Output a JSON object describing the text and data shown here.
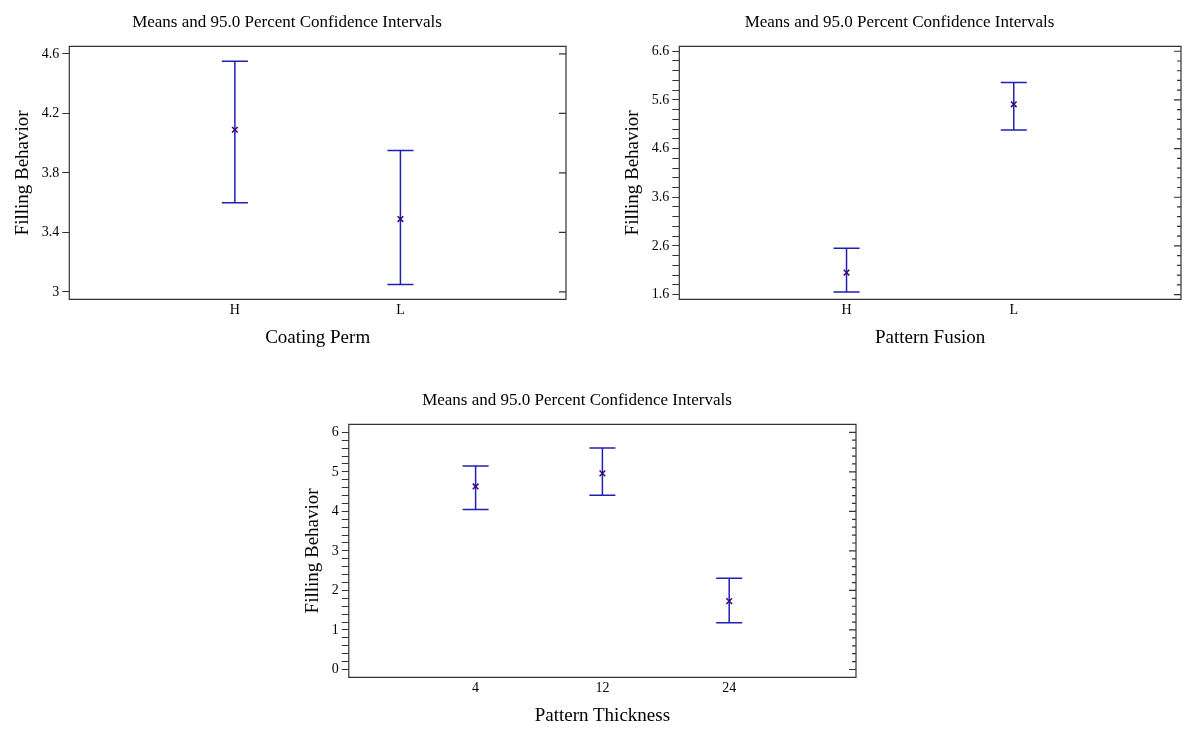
{
  "chart_data": [
    {
      "type": "scatter",
      "title": "Means and 95.0 Percent Confidence Intervals",
      "xlabel": "Coating Perm",
      "ylabel": "Filling Behavior",
      "categories": [
        "H",
        "L"
      ],
      "series": [
        {
          "color": "#400080",
          "values": [
            4.09,
            3.49
          ],
          "errors": [
            [
              3.6,
              4.55
            ],
            [
              3.05,
              3.95
            ]
          ]
        }
      ],
      "ylim": [
        2.95,
        4.65
      ],
      "yticks": [
        3,
        3.4,
        3.8,
        4.2,
        4.6
      ],
      "grid": false,
      "legend": false,
      "marker": "cross"
    },
    {
      "type": "scatter",
      "title": "Means and 95.0 Percent Confidence Intervals",
      "xlabel": "Pattern Fusion",
      "ylabel": "Filling Behavior",
      "categories": [
        "H",
        "L"
      ],
      "series": [
        {
          "color": "#400080",
          "values": [
            2.05,
            5.51
          ],
          "errors": [
            [
              1.65,
              2.55
            ],
            [
              4.98,
              5.96
            ]
          ]
        }
      ],
      "ylim": [
        1.5,
        6.7
      ],
      "yticks": [
        1.6,
        {
          "value": 1.8,
          "label": null
        },
        {
          "value": 2.0,
          "label": null
        },
        {
          "value": 2.2,
          "label": null
        },
        {
          "value": 2.4,
          "label": null
        },
        2.6,
        {
          "value": 2.8,
          "label": null
        },
        {
          "value": 3.0,
          "label": null
        },
        {
          "value": 3.2,
          "label": null
        },
        {
          "value": 3.4,
          "label": null
        },
        3.6,
        {
          "value": 3.8,
          "label": null
        },
        {
          "value": 4.0,
          "label": null
        },
        {
          "value": 4.2,
          "label": null
        },
        {
          "value": 4.4,
          "label": null
        },
        4.6,
        {
          "value": 4.8,
          "label": null
        },
        {
          "value": 5.0,
          "label": null
        },
        {
          "value": 5.2,
          "label": null
        },
        {
          "value": 5.4,
          "label": null
        },
        5.6,
        {
          "value": 5.8,
          "label": null
        },
        {
          "value": 6.0,
          "label": null
        },
        {
          "value": 6.2,
          "label": null
        },
        {
          "value": 6.4,
          "label": null
        },
        6.6
      ],
      "grid": false,
      "legend": false,
      "marker": "cross"
    },
    {
      "type": "scatter",
      "title": "Means and 95.0 Percent Confidence Intervals",
      "xlabel": "Pattern Thickness",
      "ylabel": "Filling Behavior",
      "categories": [
        "4",
        "12",
        "24"
      ],
      "series": [
        {
          "color": "#400080",
          "values": [
            4.63,
            4.96,
            1.73
          ],
          "errors": [
            [
              4.05,
              5.15
            ],
            [
              4.41,
              5.6
            ],
            [
              1.18,
              2.31
            ]
          ]
        }
      ],
      "ylim": [
        -0.2,
        6.2
      ],
      "yticks": [
        0,
        {
          "value": 0.2,
          "label": null
        },
        {
          "value": 0.4,
          "label": null
        },
        {
          "value": 0.6,
          "label": null
        },
        {
          "value": 0.8,
          "label": null
        },
        1,
        {
          "value": 1.2,
          "label": null
        },
        {
          "value": 1.4,
          "label": null
        },
        {
          "value": 1.6,
          "label": null
        },
        {
          "value": 1.8,
          "label": null
        },
        2,
        {
          "value": 2.2,
          "label": null
        },
        {
          "value": 2.4,
          "label": null
        },
        {
          "value": 2.6,
          "label": null
        },
        {
          "value": 2.8,
          "label": null
        },
        3,
        {
          "value": 3.2,
          "label": null
        },
        {
          "value": 3.4,
          "label": null
        },
        {
          "value": 3.6,
          "label": null
        },
        {
          "value": 3.8,
          "label": null
        },
        4,
        {
          "value": 4.2,
          "label": null
        },
        {
          "value": 4.4,
          "label": null
        },
        {
          "value": 4.6,
          "label": null
        },
        {
          "value": 4.8,
          "label": null
        },
        5,
        {
          "value": 5.2,
          "label": null
        },
        {
          "value": 5.4,
          "label": null
        },
        {
          "value": 5.6,
          "label": null
        },
        {
          "value": 5.8,
          "label": null
        },
        6
      ],
      "grid": false,
      "legend": false,
      "marker": "cross"
    }
  ]
}
